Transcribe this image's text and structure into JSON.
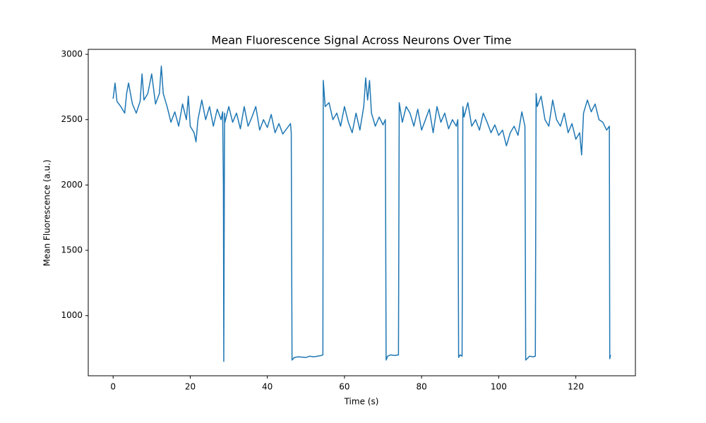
{
  "chart_data": {
    "type": "line",
    "title": "Mean Fluorescence Signal Across Neurons Over Time",
    "x_label": "Time (s)",
    "y_label": "Mean Fluorescence (a.u.)",
    "xlim": [
      -6.45,
      135.45
    ],
    "ylim": [
      540,
      3038
    ],
    "xticks": [
      0,
      20,
      40,
      60,
      80,
      100,
      120
    ],
    "yticks": [
      1000,
      1500,
      2000,
      2500,
      3000
    ],
    "grid": false,
    "x": [
      0,
      0.5,
      1,
      2,
      3,
      3.5,
      4,
      5,
      6,
      7,
      7.5,
      8,
      9,
      10,
      11,
      12,
      12.5,
      13,
      14,
      15,
      16,
      17,
      18,
      19,
      19.5,
      20,
      21,
      21.5,
      22,
      23,
      24,
      25,
      26,
      27,
      28,
      28.4,
      28.6,
      28.7,
      28.9,
      29,
      30,
      31,
      32,
      33,
      34,
      35,
      36,
      37,
      38,
      39,
      40,
      41,
      42,
      43,
      44,
      45,
      46,
      46.2,
      46.4,
      47,
      48,
      50,
      51,
      52,
      53,
      54,
      54.4,
      54.5,
      55,
      56,
      57,
      58,
      59,
      60,
      61,
      62,
      63,
      64,
      65,
      65.5,
      66,
      66.5,
      67,
      68,
      69,
      70,
      70.6,
      70.8,
      71.2,
      72,
      73,
      74,
      74.2,
      75,
      76,
      77,
      78,
      79,
      80,
      81,
      82,
      83,
      84,
      85,
      86,
      87,
      88,
      89,
      89.4,
      89.6,
      90,
      90.5,
      90.7,
      91,
      92,
      93,
      94,
      95,
      96,
      97,
      98,
      99,
      100,
      101,
      102,
      103,
      104,
      105,
      106,
      106.8,
      107,
      108,
      109,
      109.5,
      109.7,
      110,
      111,
      112,
      113,
      114,
      115,
      116,
      117,
      118,
      119,
      120,
      121,
      121.5,
      122,
      123,
      124,
      125,
      126,
      127,
      128,
      128.7,
      128.8,
      129
    ],
    "series": [
      {
        "name": "Mean Fluorescence",
        "color": "#1f77b4",
        "values": [
          2660,
          2780,
          2640,
          2600,
          2550,
          2700,
          2780,
          2620,
          2550,
          2640,
          2850,
          2650,
          2700,
          2850,
          2620,
          2700,
          2910,
          2700,
          2600,
          2480,
          2560,
          2450,
          2620,
          2500,
          2680,
          2450,
          2400,
          2330,
          2500,
          2650,
          2500,
          2600,
          2450,
          2580,
          2500,
          2560,
          2000,
          650,
          2550,
          2480,
          2600,
          2480,
          2550,
          2430,
          2600,
          2450,
          2520,
          2600,
          2420,
          2500,
          2440,
          2540,
          2400,
          2470,
          2390,
          2430,
          2470,
          2400,
          660,
          680,
          685,
          680,
          690,
          685,
          690,
          695,
          700,
          2800,
          2600,
          2630,
          2500,
          2550,
          2450,
          2600,
          2480,
          2400,
          2550,
          2420,
          2600,
          2820,
          2650,
          2800,
          2550,
          2450,
          2520,
          2460,
          2500,
          660,
          690,
          700,
          695,
          700,
          2630,
          2480,
          2600,
          2550,
          2450,
          2580,
          2420,
          2500,
          2580,
          2400,
          2600,
          2480,
          2550,
          2430,
          2500,
          2450,
          2500,
          680,
          700,
          690,
          2600,
          2520,
          2630,
          2450,
          2500,
          2420,
          2550,
          2480,
          2400,
          2460,
          2380,
          2420,
          2300,
          2400,
          2450,
          2380,
          2560,
          2450,
          660,
          690,
          685,
          690,
          2700,
          2600,
          2680,
          2500,
          2450,
          2650,
          2500,
          2450,
          2550,
          2400,
          2470,
          2350,
          2400,
          2230,
          2550,
          2650,
          2560,
          2620,
          2500,
          2480,
          2420,
          2450,
          670,
          700
        ]
      }
    ]
  }
}
